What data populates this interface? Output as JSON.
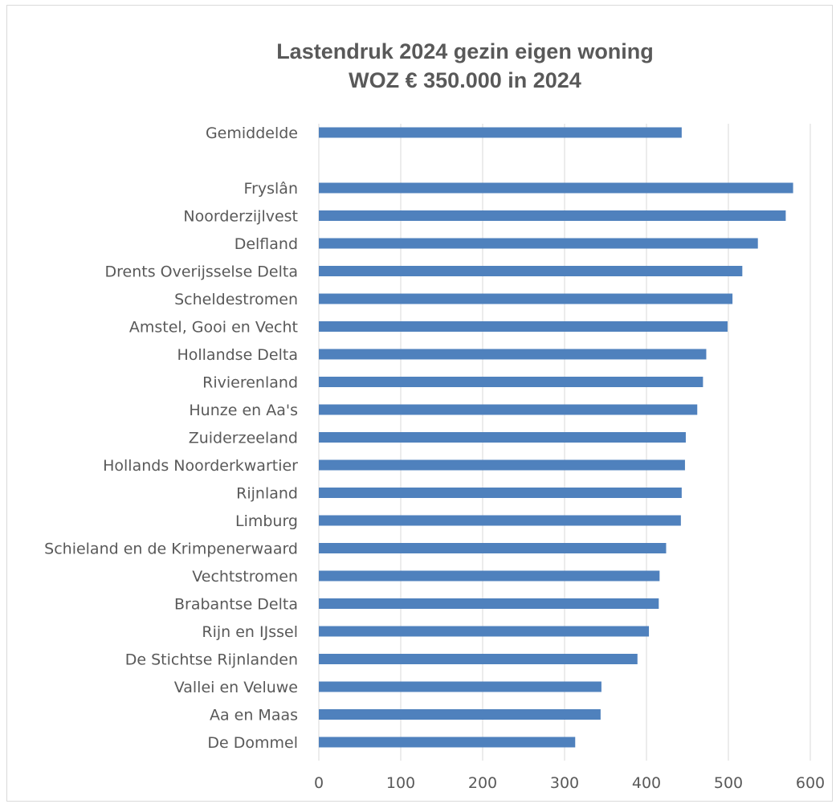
{
  "chart_data": {
    "type": "bar",
    "orientation": "horizontal",
    "title": "Lastendruk 2024 gezin eigen woning",
    "subtitle": "WOZ € 350.000 in 2024",
    "categories": [
      "Gemiddelde",
      "",
      "Fryslân",
      "Noorderzijlvest",
      "Delfland",
      "Drents Overijsselse Delta",
      "Scheldestromen",
      "Amstel, Gooi en Vecht",
      "Hollandse Delta",
      "Rivierenland",
      "Hunze en Aa's",
      "Zuiderzeeland",
      "Hollands Noorderkwartier",
      "Rijnland",
      "Limburg",
      "Schieland en de Krimpenerwaard",
      "Vechtstromen",
      "Brabantse Delta",
      "Rijn en IJssel",
      "De Stichtse Rijnlanden",
      "Vallei en Veluwe",
      "Aa en Maas",
      "De Dommel"
    ],
    "values": [
      443,
      null,
      579,
      570,
      536,
      517,
      505,
      499,
      473,
      469,
      462,
      448,
      447,
      443,
      442,
      424,
      416,
      415,
      403,
      389,
      345,
      344,
      313
    ],
    "xlim": [
      0,
      600
    ],
    "xticks": [
      0,
      100,
      200,
      300,
      400,
      500,
      600
    ],
    "grid": true,
    "legend": "none",
    "bar_color": "#4f81bd"
  }
}
